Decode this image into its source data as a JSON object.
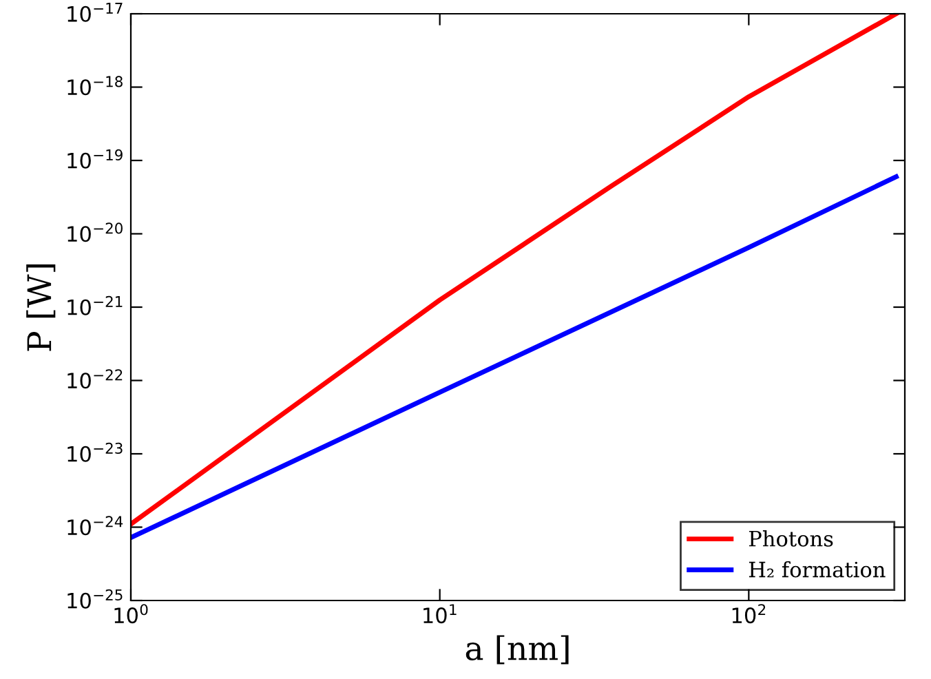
{
  "chart_data": {
    "type": "line",
    "xlabel": "a [nm]",
    "ylabel": "P [W]",
    "log": "xy",
    "legend": "bottom right",
    "grid": false,
    "line_style": "solid",
    "marker": "none",
    "xlim": [
      1,
      320
    ],
    "ylim": [
      1e-25,
      1e-17
    ],
    "xticks": [
      {
        "value": 1,
        "label": "10$^{0}$"
      },
      {
        "value": 10,
        "label": "10$^{1}$"
      },
      {
        "value": 100,
        "label": "10$^{2}$"
      }
    ],
    "yticks": [
      {
        "value": 1e-25,
        "label": "10$^{−25}$"
      },
      {
        "value": 1e-24,
        "label": "10$^{−24}$"
      },
      {
        "value": 1e-23,
        "label": "10$^{−23}$"
      },
      {
        "value": 1e-22,
        "label": "10$^{−22}$"
      },
      {
        "value": 1e-21,
        "label": "10$^{−21}$"
      },
      {
        "value": 1e-20,
        "label": "10$^{−20}$"
      },
      {
        "value": 1e-19,
        "label": "10$^{−19}$"
      },
      {
        "value": 1e-18,
        "label": "10$^{−18}$"
      },
      {
        "value": 1e-17,
        "label": "10$^{−17}$"
      }
    ],
    "series": [
      {
        "name": "Photons",
        "color": "#ff0000",
        "x": [
          1,
          10,
          36,
          100,
          300
        ],
        "values": [
          1.1e-24,
          1.25e-21,
          4.5e-20,
          7.4e-19,
          1e-17
        ]
      },
      {
        "name": "H₂ formation",
        "color": "#0000ff",
        "x": [
          1,
          10,
          100,
          300
        ],
        "values": [
          7.2e-25,
          6.9e-23,
          6.5e-21,
          6e-20
        ]
      }
    ]
  }
}
